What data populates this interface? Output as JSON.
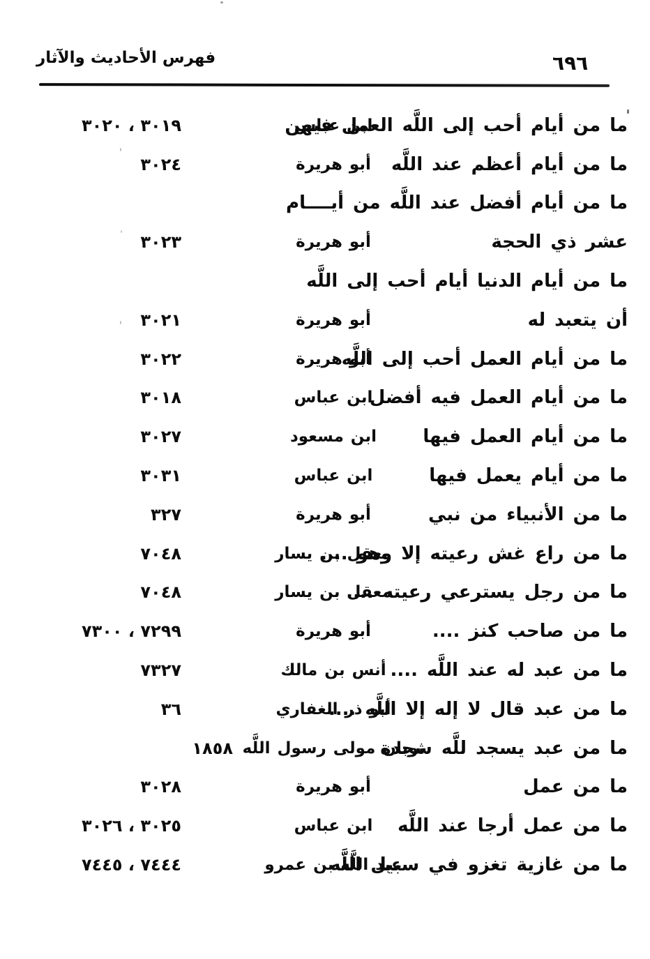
{
  "header": {
    "title": "فهرس الأحاديث والآثار",
    "page_number": "٦٩٦"
  },
  "entries": [
    {
      "text": "ما من أيام أحب إلى اللَّه العمل فيهن",
      "narrator": "ابن عباس",
      "numbers": "٣٠١٩ ، ٣٠٢٠"
    },
    {
      "text": "ما من أيام أعظم عند اللَّه",
      "narrator": "أبو هريرة",
      "numbers": "٣٠٢٤"
    },
    {
      "text": "ما من أيام أفضل عند اللَّه من أيــــام",
      "narrator": "",
      "numbers": ""
    },
    {
      "text": "عشر ذي الحجة",
      "narrator": "أبو هريرة",
      "numbers": "٣٠٢٣"
    },
    {
      "text": "ما من أيام الدنيا أيام أحب إلى اللَّه",
      "narrator": "",
      "numbers": ""
    },
    {
      "text": "أن يتعبد له",
      "narrator": "أبو هريرة",
      "numbers": "٣٠٢١"
    },
    {
      "text": "ما من أيام العمل أحب إلى اللَّه",
      "narrator": "أبو هريرة",
      "numbers": "٣٠٢٢"
    },
    {
      "text": "ما من أيام العمل فيه أفضل",
      "narrator": "ابن عباس",
      "numbers": "٣٠١٨"
    },
    {
      "text": "ما من أيام العمل فيها",
      "narrator": "ابن مسعود",
      "numbers": "٣٠٢٧"
    },
    {
      "text": "ما من أيام يعمل فيها",
      "narrator": "ابن عباس",
      "numbers": "٣٠٣١"
    },
    {
      "text": "ما من الأنبياء من نبي",
      "narrator": "أبو هريرة",
      "numbers": "٣٢٧"
    },
    {
      "text": "ما من راع غش رعيته إلا وهو ....",
      "narrator": "معقل بن يسار",
      "numbers": "٧٠٤٨"
    },
    {
      "text": "ما من رجل يسترعي رعيته ....",
      "narrator": "معقل بن يسار",
      "numbers": "٧٠٤٨"
    },
    {
      "text": "ما من صاحب كنز ....",
      "narrator": "أبو هريرة",
      "numbers": "٧٢٩٩ ، ٧٣٠٠"
    },
    {
      "text": "ما من عبد له عند اللَّه ....",
      "narrator": "أنس بن مالك",
      "numbers": "٧٣٢٧"
    },
    {
      "text": "ما من عبد قال لا إله إلا اللَّه ....",
      "narrator": "أبو ذر الغفاري",
      "numbers": "٣٦"
    },
    {
      "text": "ما من عبد يسجد للَّه سجدة",
      "narrator": "ثوبان مولى رسول اللَّه",
      "numbers": "١٨٥٨"
    },
    {
      "text": "ما من عمل",
      "narrator": "أبو هريرة",
      "numbers": "٣٠٢٨"
    },
    {
      "text": "ما من عمل أرجا عند اللَّه",
      "narrator": "ابن عباس",
      "numbers": "٣٠٢٥ ، ٣٠٢٦"
    },
    {
      "text": "ما من غازية تغزو في سبيل اللَّه",
      "narrator": "عبد اللَّه بن عمرو",
      "numbers": "٧٤٤٤ ، ٧٤٤٥"
    }
  ]
}
